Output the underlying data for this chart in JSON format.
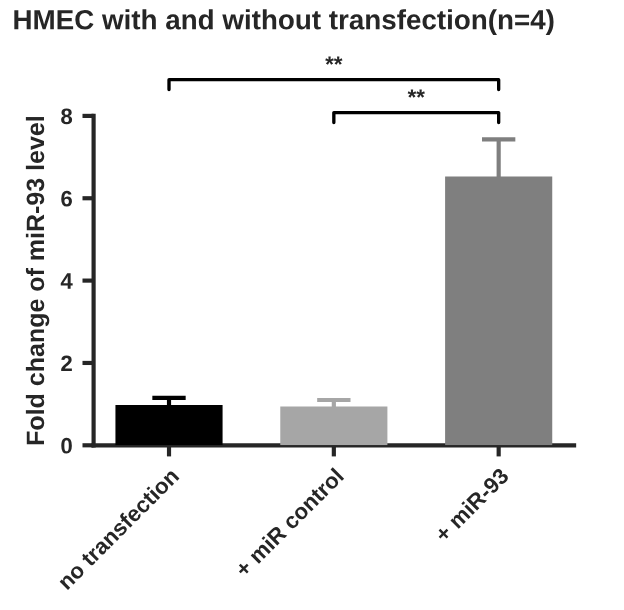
{
  "chart_data": {
    "type": "bar",
    "title": "HMEC with and without transfection(n=4)",
    "ylabel": "Fold change of miR-93 level",
    "categories": [
      "no transfection",
      "+ miR control",
      "+ miR-93"
    ],
    "values": [
      0.98,
      0.94,
      6.53
    ],
    "errors": [
      0.17,
      0.16,
      0.9
    ],
    "colors": [
      "#000000",
      "#a6a6a6",
      "#7f7f7f"
    ],
    "ylim": [
      0,
      8
    ],
    "yticks": [
      0,
      2,
      4,
      6,
      8
    ],
    "annotations": [
      "**",
      "**"
    ],
    "grid": false
  }
}
